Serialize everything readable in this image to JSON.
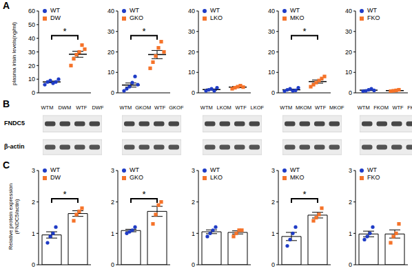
{
  "panel_labels": [
    "A",
    "B",
    "C"
  ],
  "chart_data": [
    {
      "type": "scatter",
      "ylabel": "plasma irisin levels(ng/ml)",
      "ylim": [
        0,
        60
      ],
      "yticks": [
        0,
        10,
        20,
        30,
        40,
        50,
        60
      ],
      "legend": "top-left",
      "tick_labels": "y",
      "annotations": [
        "*"
      ],
      "series": [
        {
          "name": "WT",
          "color": "#1f3cc6",
          "marker": "circle",
          "values": [
            6,
            8,
            9,
            7,
            8,
            10
          ],
          "mean": 8,
          "error": 0.6
        },
        {
          "name": "DW",
          "color": "#f5732a",
          "marker": "square",
          "values": [
            20,
            25,
            28,
            30,
            35,
            32
          ],
          "mean": 28.3,
          "error": 2.2
        }
      ]
    },
    {
      "type": "scatter",
      "ylim": [
        0,
        40
      ],
      "yticks": [
        0,
        10,
        20,
        30,
        40
      ],
      "legend": "top-left",
      "tick_labels": "y",
      "annotations": [
        "*"
      ],
      "series": [
        {
          "name": "WT",
          "color": "#1f3cc6",
          "marker": "circle",
          "values": [
            1,
            2,
            3,
            5,
            8,
            4
          ],
          "mean": 3.8,
          "error": 1
        },
        {
          "name": "GKO",
          "color": "#f5732a",
          "marker": "square",
          "values": [
            12,
            15,
            18,
            22,
            25,
            20
          ],
          "mean": 18.7,
          "error": 2
        }
      ]
    },
    {
      "type": "scatter",
      "ylim": [
        0,
        40
      ],
      "yticks": [
        0,
        10,
        20,
        30,
        40
      ],
      "legend": "top-left",
      "tick_labels": "y",
      "series": [
        {
          "name": "WT",
          "color": "#1f3cc6",
          "marker": "circle",
          "values": [
            1,
            1.5,
            2,
            1,
            2.5
          ],
          "mean": 1.6,
          "error": 0.3
        },
        {
          "name": "LKO",
          "color": "#f5732a",
          "marker": "square",
          "values": [
            2,
            2.5,
            3,
            3.5,
            2.8
          ],
          "mean": 2.8,
          "error": 0.3
        }
      ]
    },
    {
      "type": "scatter",
      "ylim": [
        0,
        40
      ],
      "yticks": [
        0,
        10,
        20,
        30,
        40
      ],
      "legend": "top-left",
      "tick_labels": "y",
      "annotations": [
        "*"
      ],
      "series": [
        {
          "name": "WT",
          "color": "#1f3cc6",
          "marker": "circle",
          "values": [
            0.8,
            1.5,
            2,
            1,
            1.2,
            2.5
          ],
          "mean": 1.5,
          "error": 0.3
        },
        {
          "name": "MKO",
          "color": "#f5732a",
          "marker": "square",
          "values": [
            3,
            4,
            5,
            6,
            7,
            8
          ],
          "mean": 5.5,
          "error": 0.8
        }
      ]
    },
    {
      "type": "scatter",
      "ylim": [
        0,
        40
      ],
      "yticks": [
        0,
        10,
        20,
        30,
        40
      ],
      "legend": "top-left",
      "tick_labels": "y",
      "series": [
        {
          "name": "WT",
          "color": "#1f3cc6",
          "marker": "circle",
          "values": [
            0.8,
            1,
            1.5,
            2,
            1.2
          ],
          "mean": 1.3,
          "error": 0.2
        },
        {
          "name": "FKO",
          "color": "#f5732a",
          "marker": "square",
          "values": [
            0.8,
            1,
            1.2,
            1.5
          ],
          "mean": 1.1,
          "error": 0.15
        }
      ]
    },
    {
      "type": "bar",
      "ylabel": "Relative protein expression (FNDC5/actin)",
      "ylim": [
        0,
        3
      ],
      "yticks": [
        0,
        1,
        2,
        3
      ],
      "legend": "top-left",
      "tick_labels": "y",
      "annotations": [
        "*"
      ],
      "series": [
        {
          "name": "WT",
          "color": "#1f3cc6",
          "marker": "circle",
          "values": [
            0.7,
            0.9,
            1,
            1.2
          ],
          "mean": 0.95,
          "error": 0.1
        },
        {
          "name": "DW",
          "color": "#f5732a",
          "marker": "square",
          "values": [
            1.4,
            1.6,
            1.7,
            1.8
          ],
          "mean": 1.63,
          "error": 0.09
        }
      ]
    },
    {
      "type": "bar",
      "ylim": [
        0,
        3
      ],
      "yticks": [
        0,
        1,
        2,
        3
      ],
      "legend": "top-left",
      "tick_labels": "y",
      "annotations": [
        "*"
      ],
      "series": [
        {
          "name": "WT",
          "color": "#1f3cc6",
          "marker": "circle",
          "values": [
            1,
            1.05,
            1.1,
            1.2
          ],
          "mean": 1.09,
          "error": 0.04
        },
        {
          "name": "GKO",
          "color": "#f5732a",
          "marker": "square",
          "values": [
            1.3,
            1.6,
            1.9,
            2
          ],
          "mean": 1.7,
          "error": 0.16
        }
      ]
    },
    {
      "type": "bar",
      "ylim": [
        0,
        3
      ],
      "yticks": [
        0,
        1,
        2,
        3
      ],
      "legend": "top-left",
      "tick_labels": "y",
      "series": [
        {
          "name": "WT",
          "color": "#1f3cc6",
          "marker": "circle",
          "values": [
            0.9,
            1,
            1.1,
            1.2
          ],
          "mean": 1.05,
          "error": 0.06
        },
        {
          "name": "LKO",
          "color": "#f5732a",
          "marker": "square",
          "values": [
            0.9,
            1,
            1.1,
            1.1
          ],
          "mean": 1.03,
          "error": 0.05
        }
      ]
    },
    {
      "type": "bar",
      "ylim": [
        0,
        3
      ],
      "yticks": [
        0,
        1,
        2,
        3
      ],
      "legend": "top-left",
      "tick_labels": "y",
      "annotations": [
        "*"
      ],
      "series": [
        {
          "name": "WT",
          "color": "#1f3cc6",
          "marker": "circle",
          "values": [
            0.6,
            0.8,
            1,
            1.2
          ],
          "mean": 0.9,
          "error": 0.13
        },
        {
          "name": "MKO",
          "color": "#f5732a",
          "marker": "square",
          "values": [
            1.4,
            1.5,
            1.6,
            1.8
          ],
          "mean": 1.58,
          "error": 0.09
        }
      ]
    },
    {
      "type": "bar",
      "ylim": [
        0,
        3
      ],
      "yticks": [
        0,
        1,
        2,
        3
      ],
      "legend": "top-left",
      "tick_labels": "y",
      "series": [
        {
          "name": "WT",
          "color": "#1f3cc6",
          "marker": "circle",
          "values": [
            0.8,
            0.9,
            1,
            1.2
          ],
          "mean": 0.98,
          "error": 0.09
        },
        {
          "name": "FKO",
          "color": "#f5732a",
          "marker": "square",
          "values": [
            0.7,
            0.9,
            1,
            1.3
          ],
          "mean": 0.98,
          "error": 0.13
        }
      ]
    }
  ],
  "blots": {
    "rows": [
      "FNDC5",
      "β-actin"
    ],
    "groups": [
      [
        "WTM",
        "DWM",
        "WTF",
        "DWF"
      ],
      [
        "WTM",
        "GKOM",
        "WTF",
        "GKOF"
      ],
      [
        "WTM",
        "LKOM",
        "WTF",
        "LKOF"
      ],
      [
        "WTM",
        "MKOM",
        "WTF",
        "MKOF"
      ],
      [
        "WTM",
        "FKOM",
        "WTF",
        "FKOF"
      ]
    ]
  }
}
